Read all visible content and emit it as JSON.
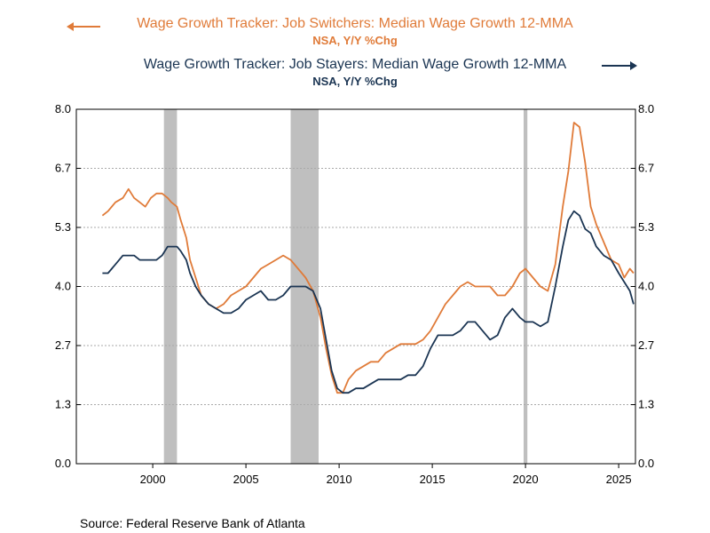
{
  "legend": {
    "switchers_title": "Wage Growth Tracker: Job Switchers: Median Wage Growth 12-MMA",
    "switchers_sub": "NSA, Y/Y %Chg",
    "stayers_title": "Wage Growth Tracker: Job Stayers: Median Wage Growth 12-MMA",
    "stayers_sub": "NSA, Y/Y %Chg"
  },
  "source": "Source:  Federal Reserve Bank of Atlanta",
  "colors": {
    "switchers": "#e07b39",
    "stayers": "#1b3553",
    "recession": "#bfbfbf",
    "grid": "#aaaaaa"
  },
  "chart_data": {
    "type": "line",
    "xlim": [
      1995.9,
      2025.9
    ],
    "ylim": [
      0,
      8
    ],
    "y_ticks": [
      "0.0",
      "1.3",
      "2.7",
      "4.0",
      "5.3",
      "6.7",
      "8.0"
    ],
    "y_tick_values": [
      0,
      1.333,
      2.667,
      4.0,
      5.333,
      6.667,
      8.0
    ],
    "y2_ticks": [
      "0.0",
      "1.3",
      "2.7",
      "4.0",
      "5.3",
      "6.7",
      "8.0"
    ],
    "x_ticks": [
      "2000",
      "2005",
      "2010",
      "2015",
      "2020",
      "2025"
    ],
    "x_tick_values": [
      2000,
      2005,
      2010,
      2015,
      2020,
      2025
    ],
    "recessions": [
      [
        2000.6,
        2001.3
      ],
      [
        2007.4,
        2008.9
      ],
      [
        2019.9,
        2020.1
      ]
    ],
    "series": [
      {
        "name": "Wage Growth Tracker: Job Switchers: Median Wage Growth 12-MMA",
        "axis": "left",
        "x": [
          1997.3,
          1997.6,
          1998.0,
          1998.4,
          1998.7,
          1999.0,
          1999.3,
          1999.6,
          1999.9,
          2000.2,
          2000.5,
          2000.8,
          2001.0,
          2001.3,
          2001.5,
          2001.8,
          2002.0,
          2002.3,
          2002.6,
          2003.0,
          2003.4,
          2003.8,
          2004.2,
          2004.6,
          2005.0,
          2005.4,
          2005.8,
          2006.2,
          2006.6,
          2007.0,
          2007.4,
          2007.8,
          2008.2,
          2008.6,
          2009.0,
          2009.3,
          2009.6,
          2009.9,
          2010.2,
          2010.5,
          2010.9,
          2011.3,
          2011.7,
          2012.1,
          2012.5,
          2012.9,
          2013.3,
          2013.7,
          2014.1,
          2014.5,
          2014.9,
          2015.3,
          2015.7,
          2016.1,
          2016.5,
          2016.9,
          2017.3,
          2017.7,
          2018.1,
          2018.5,
          2018.9,
          2019.3,
          2019.7,
          2020.0,
          2020.4,
          2020.8,
          2021.2,
          2021.6,
          2022.0,
          2022.3,
          2022.6,
          2022.9,
          2023.2,
          2023.5,
          2023.8,
          2024.2,
          2024.6,
          2025.0,
          2025.3,
          2025.6,
          2025.8
        ],
        "values": [
          5.6,
          5.7,
          5.9,
          6.0,
          6.2,
          6.0,
          5.9,
          5.8,
          6.0,
          6.1,
          6.1,
          6.0,
          5.9,
          5.8,
          5.5,
          5.1,
          4.6,
          4.2,
          3.8,
          3.6,
          3.5,
          3.6,
          3.8,
          3.9,
          4.0,
          4.2,
          4.4,
          4.5,
          4.6,
          4.7,
          4.6,
          4.4,
          4.2,
          3.9,
          3.3,
          2.6,
          2.0,
          1.6,
          1.6,
          1.9,
          2.1,
          2.2,
          2.3,
          2.3,
          2.5,
          2.6,
          2.7,
          2.7,
          2.7,
          2.8,
          3.0,
          3.3,
          3.6,
          3.8,
          4.0,
          4.1,
          4.0,
          4.0,
          4.0,
          3.8,
          3.8,
          4.0,
          4.3,
          4.4,
          4.2,
          4.0,
          3.9,
          4.5,
          5.8,
          6.6,
          7.7,
          7.6,
          6.8,
          5.8,
          5.4,
          5.0,
          4.6,
          4.5,
          4.2,
          4.4,
          4.3
        ]
      },
      {
        "name": "Wage Growth Tracker: Job Stayers: Median Wage Growth 12-MMA",
        "axis": "right",
        "x": [
          1997.3,
          1997.6,
          1998.0,
          1998.4,
          1998.7,
          1999.0,
          1999.3,
          1999.6,
          1999.9,
          2000.2,
          2000.5,
          2000.8,
          2001.0,
          2001.3,
          2001.5,
          2001.8,
          2002.0,
          2002.3,
          2002.6,
          2003.0,
          2003.4,
          2003.8,
          2004.2,
          2004.6,
          2005.0,
          2005.4,
          2005.8,
          2006.2,
          2006.6,
          2007.0,
          2007.4,
          2007.8,
          2008.2,
          2008.6,
          2009.0,
          2009.3,
          2009.6,
          2009.9,
          2010.2,
          2010.5,
          2010.9,
          2011.3,
          2011.7,
          2012.1,
          2012.5,
          2012.9,
          2013.3,
          2013.7,
          2014.1,
          2014.5,
          2014.9,
          2015.3,
          2015.7,
          2016.1,
          2016.5,
          2016.9,
          2017.3,
          2017.7,
          2018.1,
          2018.5,
          2018.9,
          2019.3,
          2019.7,
          2020.0,
          2020.4,
          2020.8,
          2021.2,
          2021.6,
          2022.0,
          2022.3,
          2022.6,
          2022.9,
          2023.2,
          2023.5,
          2023.8,
          2024.2,
          2024.6,
          2025.0,
          2025.3,
          2025.6,
          2025.8
        ],
        "values": [
          4.3,
          4.3,
          4.5,
          4.7,
          4.7,
          4.7,
          4.6,
          4.6,
          4.6,
          4.6,
          4.7,
          4.9,
          4.9,
          4.9,
          4.8,
          4.6,
          4.3,
          4.0,
          3.8,
          3.6,
          3.5,
          3.4,
          3.4,
          3.5,
          3.7,
          3.8,
          3.9,
          3.7,
          3.7,
          3.8,
          4.0,
          4.0,
          4.0,
          3.9,
          3.5,
          2.8,
          2.1,
          1.7,
          1.6,
          1.6,
          1.7,
          1.7,
          1.8,
          1.9,
          1.9,
          1.9,
          1.9,
          2.0,
          2.0,
          2.2,
          2.6,
          2.9,
          2.9,
          2.9,
          3.0,
          3.2,
          3.2,
          3.0,
          2.8,
          2.9,
          3.3,
          3.5,
          3.3,
          3.2,
          3.2,
          3.1,
          3.2,
          4.0,
          4.9,
          5.5,
          5.7,
          5.6,
          5.3,
          5.2,
          4.9,
          4.7,
          4.6,
          4.3,
          4.1,
          3.9,
          3.6
        ]
      }
    ]
  }
}
